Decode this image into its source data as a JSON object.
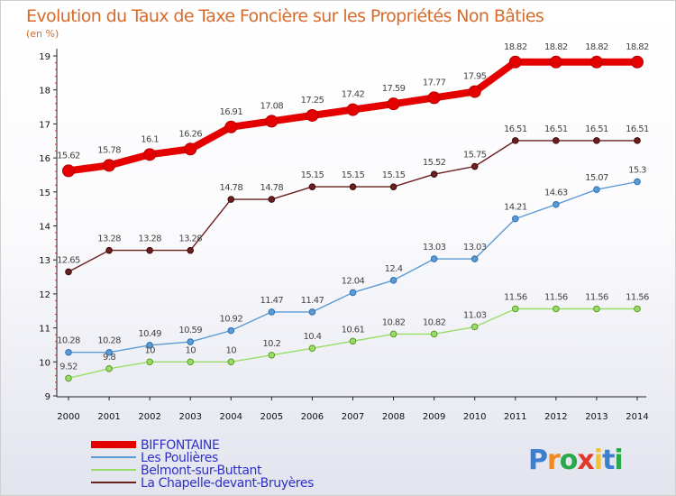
{
  "chart_data": {
    "type": "line",
    "title": "Evolution du Taux de Taxe Foncière sur les Propriétés Non Bâties",
    "ylabel": "(en %)",
    "xlabel": "",
    "ylim": [
      9,
      19
    ],
    "yticks": [
      "9",
      "10",
      "11",
      "12",
      "13",
      "14",
      "15",
      "16",
      "17",
      "18",
      "19"
    ],
    "categories": [
      "2000",
      "2001",
      "2002",
      "2003",
      "2004",
      "2005",
      "2006",
      "2007",
      "2008",
      "2009",
      "2010",
      "2011",
      "2012",
      "2013",
      "2014"
    ],
    "series": [
      {
        "name": "BIFFONTAINE",
        "color": "#e50000",
        "values": [
          15.62,
          15.78,
          16.1,
          16.26,
          16.91,
          17.08,
          17.25,
          17.42,
          17.59,
          17.77,
          17.95,
          18.82,
          18.82,
          18.82,
          18.82
        ],
        "labels": [
          "15.62",
          "15.78",
          "16.1",
          "16.26",
          "16.91",
          "17.08",
          "17.25",
          "17.42",
          "17.59",
          "17.77",
          "17.95",
          "18.82",
          "18.82",
          "18.82",
          "18.82"
        ]
      },
      {
        "name": "Les Poulières",
        "color": "#5b9bd5",
        "values": [
          10.28,
          10.28,
          10.49,
          10.59,
          10.92,
          11.47,
          11.47,
          12.04,
          12.4,
          13.03,
          13.03,
          14.21,
          14.63,
          15.07,
          15.3
        ],
        "labels": [
          "10.28",
          "10.28",
          "10.49",
          "10.59",
          "10.92",
          "11.47",
          "11.47",
          "12.04",
          "12.4",
          "13.03",
          "13.03",
          "14.21",
          "14.63",
          "15.07",
          "15.3"
        ]
      },
      {
        "name": "Belmont-sur-Buttant",
        "color": "#99dd66",
        "values": [
          9.52,
          9.8,
          10,
          10,
          10,
          10.2,
          10.4,
          10.61,
          10.82,
          10.82,
          11.03,
          11.56,
          11.56,
          11.56,
          11.56
        ],
        "labels": [
          "9.52",
          "9.8",
          "10",
          "10",
          "10",
          "10.2",
          "10.4",
          "10.61",
          "10.82",
          "10.82",
          "11.03",
          "11.56",
          "11.56",
          "11.56",
          "11.56"
        ]
      },
      {
        "name": "La Chapelle-devant-Bruyères",
        "color": "#6b1f1f",
        "values": [
          12.65,
          13.28,
          13.28,
          13.28,
          14.78,
          14.78,
          15.15,
          15.15,
          15.15,
          15.52,
          15.75,
          16.51,
          16.51,
          16.51,
          16.51
        ],
        "labels": [
          "12.65",
          "13.28",
          "13.28",
          "13.28",
          "14.78",
          "14.78",
          "15.15",
          "15.15",
          "15.15",
          "15.52",
          "15.75",
          "16.51",
          "16.51",
          "16.51",
          "16.51"
        ]
      }
    ],
    "grid": false,
    "legend_position": "bottom-left"
  },
  "logo": {
    "text": "Proxiti"
  }
}
